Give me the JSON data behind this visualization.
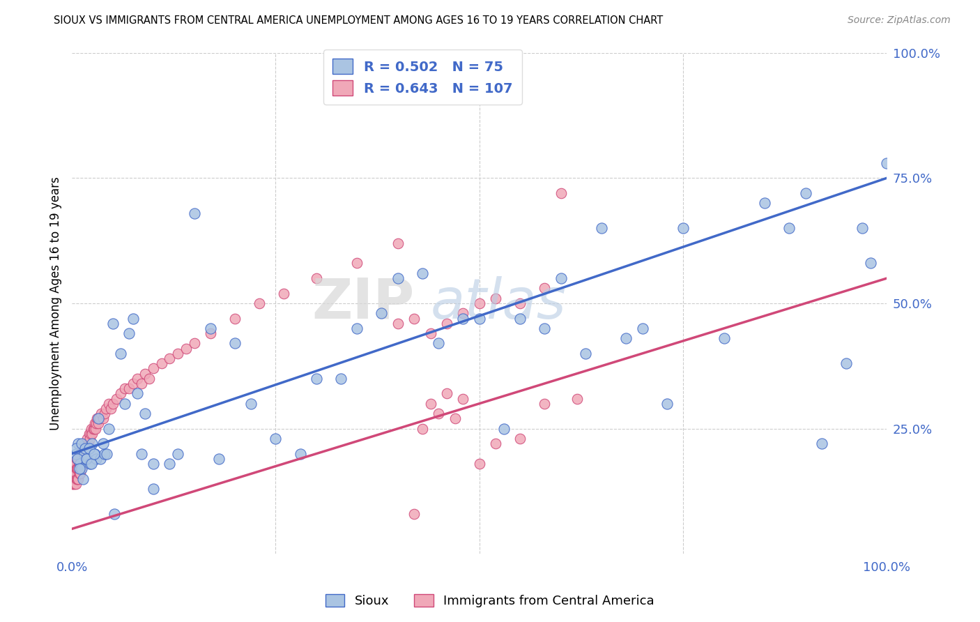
{
  "title": "SIOUX VS IMMIGRANTS FROM CENTRAL AMERICA UNEMPLOYMENT AMONG AGES 16 TO 19 YEARS CORRELATION CHART",
  "source": "Source: ZipAtlas.com",
  "ylabel": "Unemployment Among Ages 16 to 19 years",
  "ylabel_right_ticks": [
    "100.0%",
    "75.0%",
    "50.0%",
    "25.0%"
  ],
  "ylabel_right_vals": [
    1.0,
    0.75,
    0.5,
    0.25
  ],
  "legend_label1": "Sioux",
  "legend_label2": "Immigrants from Central America",
  "R1": "0.502",
  "N1": "75",
  "R2": "0.643",
  "N2": "107",
  "color_sioux": "#aac4e2",
  "color_immigrant": "#f0a8b8",
  "line_color_sioux": "#4169c8",
  "line_color_immigrant": "#d04878",
  "background_color": "#ffffff",
  "watermark_zip": "ZIP",
  "watermark_atlas": "atlas",
  "xlim": [
    0.0,
    1.0
  ],
  "ylim": [
    0.0,
    1.0
  ],
  "sioux_x": [
    0.005,
    0.008,
    0.01,
    0.012,
    0.015,
    0.018,
    0.02,
    0.022,
    0.025,
    0.028,
    0.03,
    0.035,
    0.04,
    0.045,
    0.05,
    0.06,
    0.07,
    0.08,
    0.09,
    0.1,
    0.12,
    0.15,
    0.17,
    0.2,
    0.25,
    0.3,
    0.35,
    0.4,
    0.45,
    0.5,
    0.55,
    0.6,
    0.65,
    0.7,
    0.75,
    0.8,
    0.85,
    0.88,
    0.9,
    0.92,
    0.95,
    0.97,
    0.98,
    1.0,
    0.005,
    0.007,
    0.009,
    0.012,
    0.014,
    0.016,
    0.018,
    0.021,
    0.024,
    0.027,
    0.032,
    0.038,
    0.043,
    0.052,
    0.065,
    0.075,
    0.085,
    0.1,
    0.13,
    0.18,
    0.22,
    0.28,
    0.33,
    0.38,
    0.43,
    0.48,
    0.53,
    0.58,
    0.63,
    0.68,
    0.73
  ],
  "sioux_y": [
    0.2,
    0.22,
    0.18,
    0.17,
    0.2,
    0.19,
    0.21,
    0.18,
    0.22,
    0.2,
    0.19,
    0.19,
    0.2,
    0.25,
    0.46,
    0.4,
    0.44,
    0.32,
    0.28,
    0.18,
    0.18,
    0.68,
    0.45,
    0.42,
    0.23,
    0.35,
    0.45,
    0.55,
    0.42,
    0.47,
    0.47,
    0.55,
    0.65,
    0.45,
    0.65,
    0.43,
    0.7,
    0.65,
    0.72,
    0.22,
    0.38,
    0.65,
    0.58,
    0.78,
    0.21,
    0.19,
    0.17,
    0.22,
    0.15,
    0.21,
    0.19,
    0.21,
    0.18,
    0.2,
    0.27,
    0.22,
    0.2,
    0.08,
    0.3,
    0.47,
    0.2,
    0.13,
    0.2,
    0.19,
    0.3,
    0.2,
    0.35,
    0.48,
    0.56,
    0.47,
    0.25,
    0.45,
    0.4,
    0.43,
    0.3
  ],
  "immigrant_x": [
    0.001,
    0.001,
    0.002,
    0.002,
    0.003,
    0.003,
    0.003,
    0.004,
    0.004,
    0.005,
    0.005,
    0.005,
    0.006,
    0.006,
    0.006,
    0.007,
    0.007,
    0.007,
    0.008,
    0.008,
    0.008,
    0.009,
    0.009,
    0.009,
    0.01,
    0.01,
    0.01,
    0.011,
    0.011,
    0.012,
    0.012,
    0.013,
    0.013,
    0.014,
    0.014,
    0.015,
    0.015,
    0.016,
    0.016,
    0.017,
    0.018,
    0.019,
    0.02,
    0.021,
    0.022,
    0.023,
    0.024,
    0.025,
    0.026,
    0.027,
    0.028,
    0.029,
    0.03,
    0.031,
    0.032,
    0.034,
    0.036,
    0.038,
    0.04,
    0.042,
    0.045,
    0.048,
    0.05,
    0.055,
    0.06,
    0.065,
    0.07,
    0.075,
    0.08,
    0.085,
    0.09,
    0.095,
    0.1,
    0.11,
    0.12,
    0.13,
    0.14,
    0.15,
    0.17,
    0.2,
    0.23,
    0.26,
    0.3,
    0.35,
    0.4,
    0.42,
    0.43,
    0.44,
    0.45,
    0.46,
    0.47,
    0.48,
    0.5,
    0.52,
    0.55,
    0.58,
    0.6,
    0.62,
    0.4,
    0.42,
    0.44,
    0.46,
    0.48,
    0.5,
    0.52,
    0.55,
    0.58
  ],
  "immigrant_y": [
    0.14,
    0.17,
    0.14,
    0.17,
    0.14,
    0.16,
    0.18,
    0.15,
    0.17,
    0.14,
    0.16,
    0.18,
    0.15,
    0.17,
    0.19,
    0.15,
    0.17,
    0.19,
    0.15,
    0.17,
    0.19,
    0.16,
    0.18,
    0.2,
    0.16,
    0.18,
    0.2,
    0.17,
    0.19,
    0.18,
    0.2,
    0.19,
    0.21,
    0.19,
    0.21,
    0.2,
    0.22,
    0.2,
    0.22,
    0.21,
    0.22,
    0.23,
    0.22,
    0.24,
    0.23,
    0.24,
    0.25,
    0.24,
    0.25,
    0.25,
    0.26,
    0.25,
    0.26,
    0.27,
    0.26,
    0.27,
    0.28,
    0.27,
    0.28,
    0.29,
    0.3,
    0.29,
    0.3,
    0.31,
    0.32,
    0.33,
    0.33,
    0.34,
    0.35,
    0.34,
    0.36,
    0.35,
    0.37,
    0.38,
    0.39,
    0.4,
    0.41,
    0.42,
    0.44,
    0.47,
    0.5,
    0.52,
    0.55,
    0.58,
    0.62,
    0.08,
    0.25,
    0.3,
    0.28,
    0.32,
    0.27,
    0.31,
    0.18,
    0.22,
    0.23,
    0.3,
    0.72,
    0.31,
    0.46,
    0.47,
    0.44,
    0.46,
    0.48,
    0.5,
    0.51,
    0.5,
    0.53
  ]
}
